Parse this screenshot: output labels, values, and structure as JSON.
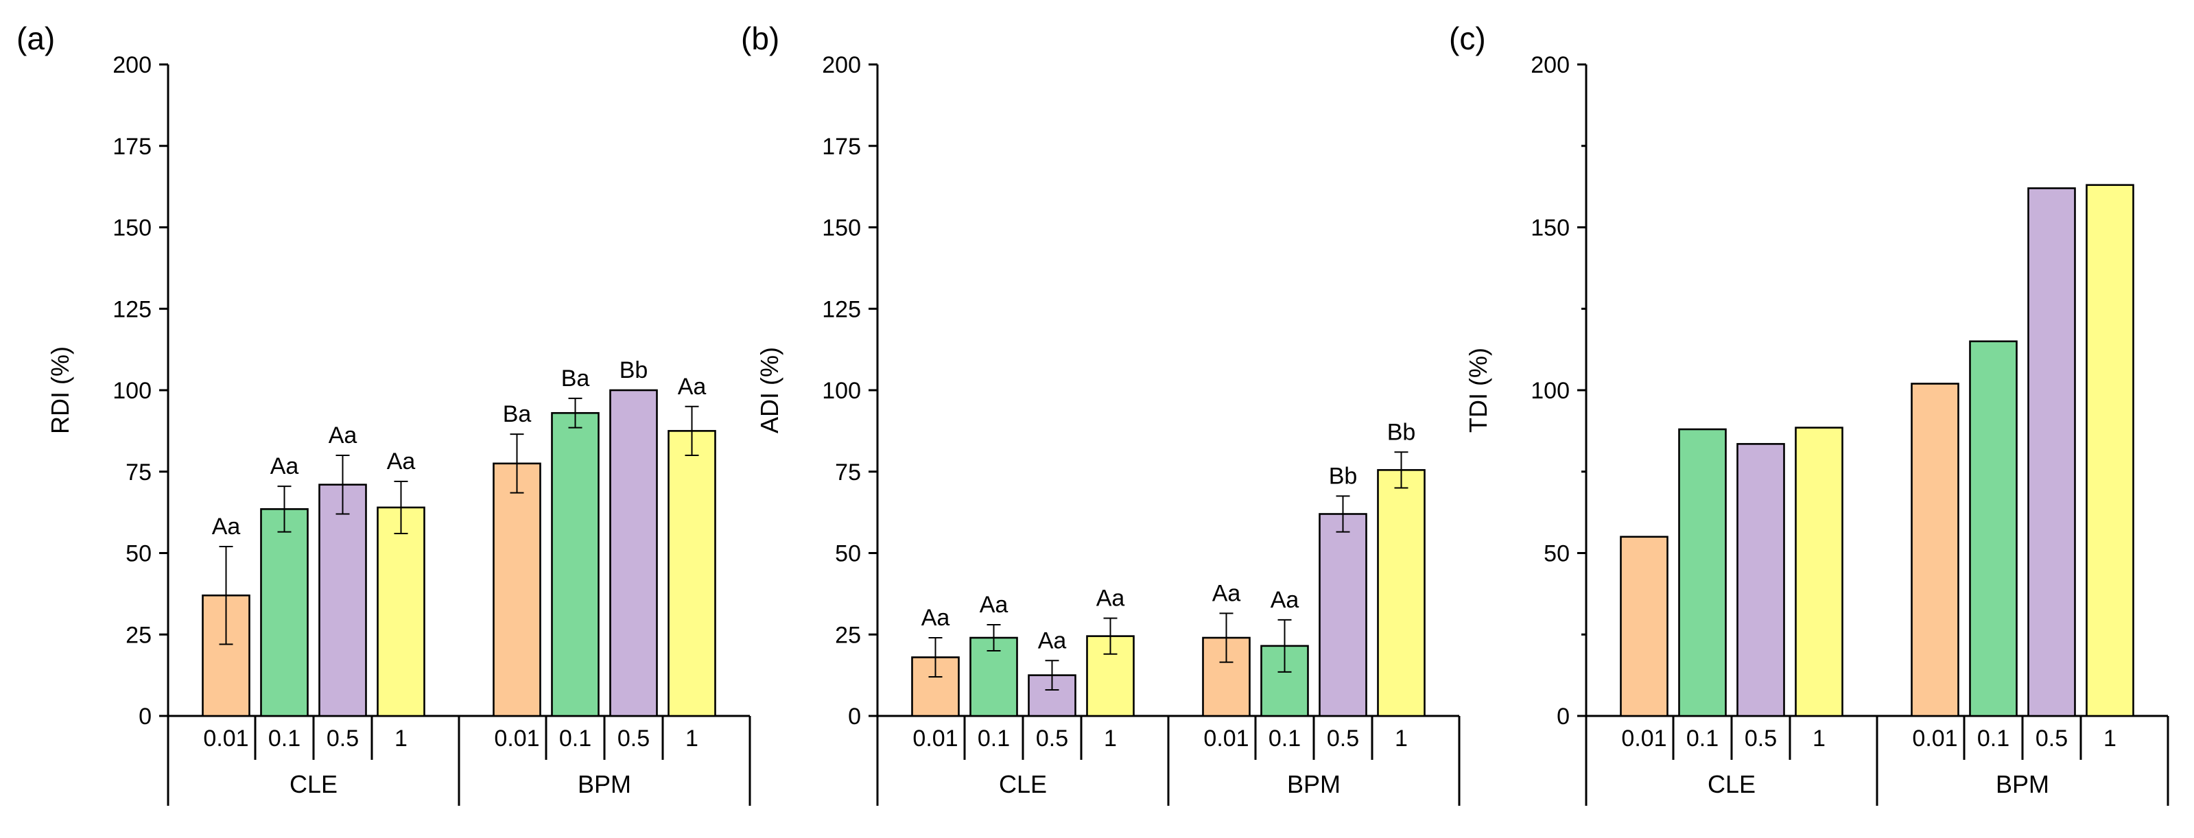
{
  "chart_data": [
    {
      "panel_label": "(a)",
      "type": "bar",
      "ylabel": "RDI (%)",
      "ylim": [
        0,
        200
      ],
      "yticks": [
        0,
        25,
        50,
        75,
        100,
        125,
        150,
        175,
        200
      ],
      "groups": [
        "CLE",
        "BPM"
      ],
      "categories": [
        "0.01",
        "0.1",
        "0.5",
        "1"
      ],
      "series": [
        {
          "name": "CLE",
          "values": [
            37,
            63.5,
            71,
            64
          ],
          "errors": [
            15,
            7,
            9,
            8
          ],
          "letters": [
            "Aa",
            "Aa",
            "Aa",
            "Aa"
          ]
        },
        {
          "name": "BPM",
          "values": [
            77.5,
            93,
            100,
            87.5
          ],
          "errors": [
            9,
            4.5,
            0,
            7.5
          ],
          "letters": [
            "Ba",
            "Ba",
            "Bb",
            "Aa"
          ]
        }
      ]
    },
    {
      "panel_label": "(b)",
      "type": "bar",
      "ylabel": "ADI (%)",
      "ylim": [
        0,
        200
      ],
      "yticks": [
        0,
        25,
        50,
        75,
        100,
        125,
        150,
        175,
        200
      ],
      "groups": [
        "CLE",
        "BPM"
      ],
      "categories": [
        "0.01",
        "0.1",
        "0.5",
        "1"
      ],
      "series": [
        {
          "name": "CLE",
          "values": [
            18,
            24,
            12.5,
            24.5
          ],
          "errors": [
            6,
            4,
            4.5,
            5.5
          ],
          "letters": [
            "Aa",
            "Aa",
            "Aa",
            "Aa"
          ]
        },
        {
          "name": "BPM",
          "values": [
            24,
            21.5,
            62,
            75.5
          ],
          "errors": [
            7.5,
            8,
            5.5,
            5.5
          ],
          "letters": [
            "Aa",
            "Aa",
            "Bb",
            "Bb"
          ]
        }
      ]
    },
    {
      "panel_label": "(c)",
      "type": "bar",
      "ylabel": "TDI (%)",
      "ylim": [
        0,
        200
      ],
      "yticks": [
        0,
        50,
        100,
        150,
        200
      ],
      "minor_yticks": [
        25,
        75,
        125,
        175
      ],
      "groups": [
        "CLE",
        "BPM"
      ],
      "categories": [
        "0.01",
        "0.1",
        "0.5",
        "1"
      ],
      "series": [
        {
          "name": "CLE",
          "values": [
            55,
            88,
            83.5,
            88.5
          ],
          "errors": null,
          "letters": null
        },
        {
          "name": "BPM",
          "values": [
            102,
            115,
            162,
            163
          ],
          "errors": null,
          "letters": null
        }
      ]
    }
  ],
  "colors": {
    "0.01": "#fdc895",
    "0.1": "#7ed99a",
    "0.5": "#c8b2da",
    "1": "#fffd8a"
  }
}
